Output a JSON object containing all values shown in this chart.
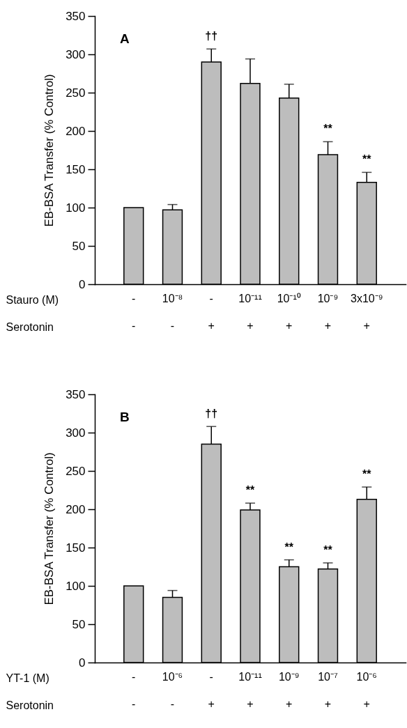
{
  "chart_data": [
    {
      "type": "bar",
      "ylabel": "EB-BSA Transfer (% Control)",
      "xlabel": "Stauro (M)\nSerotonin",
      "categories": [
        "-\n-",
        "10⁻⁸\n-",
        "-\n+",
        "10⁻¹¹\n+",
        "10⁻¹⁰\n+",
        "10⁻⁹\n+",
        "3x10⁻⁹\n+"
      ],
      "series": [
        {
          "color": "#bdbdbd",
          "values": [
            100,
            97,
            290,
            262,
            243,
            169,
            133
          ],
          "errors": [
            null,
            7,
            17,
            32,
            18,
            17,
            13
          ]
        }
      ],
      "ylim": [
        0,
        350
      ],
      "yticks": [
        0,
        50,
        100,
        150,
        200,
        250,
        300,
        350
      ],
      "grid": false,
      "annotations": [
        "A",
        {
          "text": "††",
          "x": "-\n+",
          "y": 307
        },
        {
          "text": "**",
          "x": "10⁻⁹\n+",
          "y": 186
        },
        {
          "text": "**",
          "x": "3x10⁻⁹\n+",
          "y": 146
        }
      ]
    },
    {
      "type": "bar",
      "ylabel": "EB-BSA Transfer (% Control)",
      "xlabel": "YT-1 (M)\nSerotonin",
      "categories": [
        "-\n-",
        "10⁻⁶\n-",
        "-\n+",
        "10⁻¹¹\n+",
        "10⁻⁹\n+",
        "10⁻⁷\n+",
        "10⁻⁶\n+"
      ],
      "series": [
        {
          "color": "#bdbdbd",
          "values": [
            100,
            85,
            285,
            199,
            125,
            122,
            213
          ],
          "errors": [
            null,
            9,
            23,
            9,
            9,
            8,
            16
          ]
        }
      ],
      "ylim": [
        0,
        350
      ],
      "yticks": [
        0,
        50,
        100,
        150,
        200,
        250,
        300,
        350
      ],
      "grid": false,
      "annotations": [
        "B",
        {
          "text": "††",
          "x": "-\n+",
          "y": 308
        },
        {
          "text": "**",
          "x": "10⁻¹¹\n+",
          "y": 208
        },
        {
          "text": "**",
          "x": "10⁻⁹\n+",
          "y": 134
        },
        {
          "text": "**",
          "x": "10⁻⁷\n+",
          "y": 130
        },
        {
          "text": "**",
          "x": "10⁻⁶\n+",
          "y": 229
        }
      ]
    }
  ]
}
